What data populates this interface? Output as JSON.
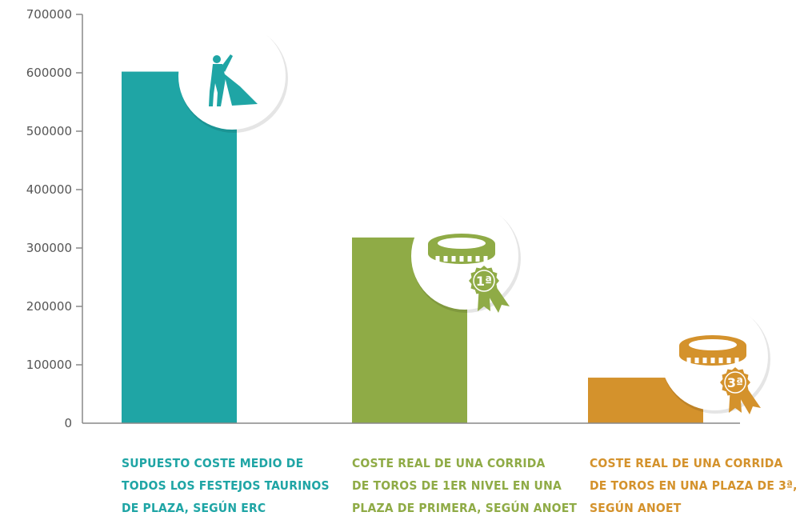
{
  "chart_data": {
    "type": "bar",
    "categories": [
      "Supuesto coste medio de todos los festejos taurinos de plaza, según ERC",
      "Coste real de una corrida de toros de 1er nivel en una plaza de primera, según ANOET",
      "Coste real de una corrida de toros en una plaza de 3ª, según ANOET"
    ],
    "values": [
      602000,
      318000,
      78000
    ],
    "colors": [
      "#1fa5a5",
      "#8fab46",
      "#d4922c"
    ],
    "ylim": [
      0,
      700000
    ],
    "yticks": [
      "0",
      "100000",
      "200000",
      "300000",
      "400000",
      "500000",
      "600000",
      "700000"
    ],
    "grid": false,
    "legend": "none",
    "icons": [
      "bullfighter-icon",
      "bullring-first-category-icon",
      "bullring-third-category-icon"
    ],
    "badges": [
      "1ª",
      "3ª"
    ]
  },
  "labels": [
    {
      "lines": [
        "Supuesto coste medio de",
        "todos los festejos taurinos",
        "de plaza, según ERC"
      ]
    },
    {
      "lines": [
        "Coste real de una corrida",
        "de toros de 1er nivel en una",
        "plaza de primera, según ANOET"
      ]
    },
    {
      "lines": [
        "Coste real de una corrida",
        "de toros en una plaza de 3ª,",
        "según ANOET"
      ]
    }
  ]
}
